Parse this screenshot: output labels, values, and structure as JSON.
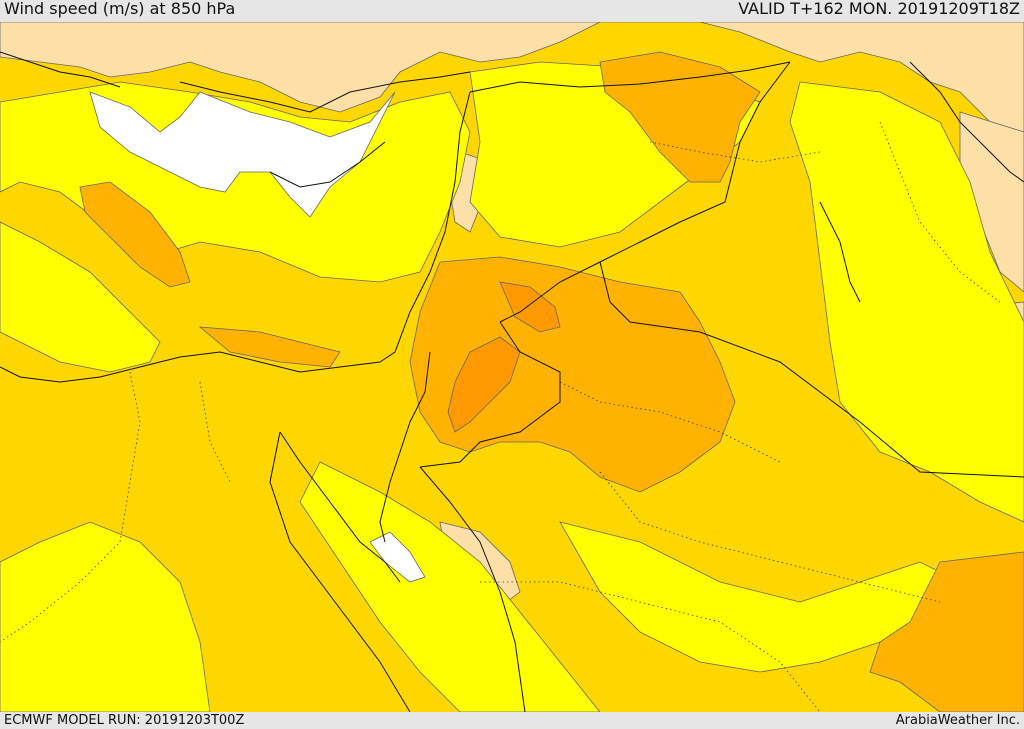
{
  "header": {
    "title": "Wind speed (m/s) at 850 hPa",
    "valid": "VALID T+162 MON. 20191209T18Z"
  },
  "footer": {
    "model_run": "ECMWF MODEL RUN: 20191203T00Z",
    "credit": "ArabiaWeather Inc."
  },
  "colors": {
    "calm": "#ffffff",
    "light": "#fde0a8",
    "moderate_low": "#ffff00",
    "moderate": "#ffd700",
    "fresh": "#ffb300",
    "strong": "#ff9900",
    "border": "#111111",
    "contour": "#666666"
  }
}
